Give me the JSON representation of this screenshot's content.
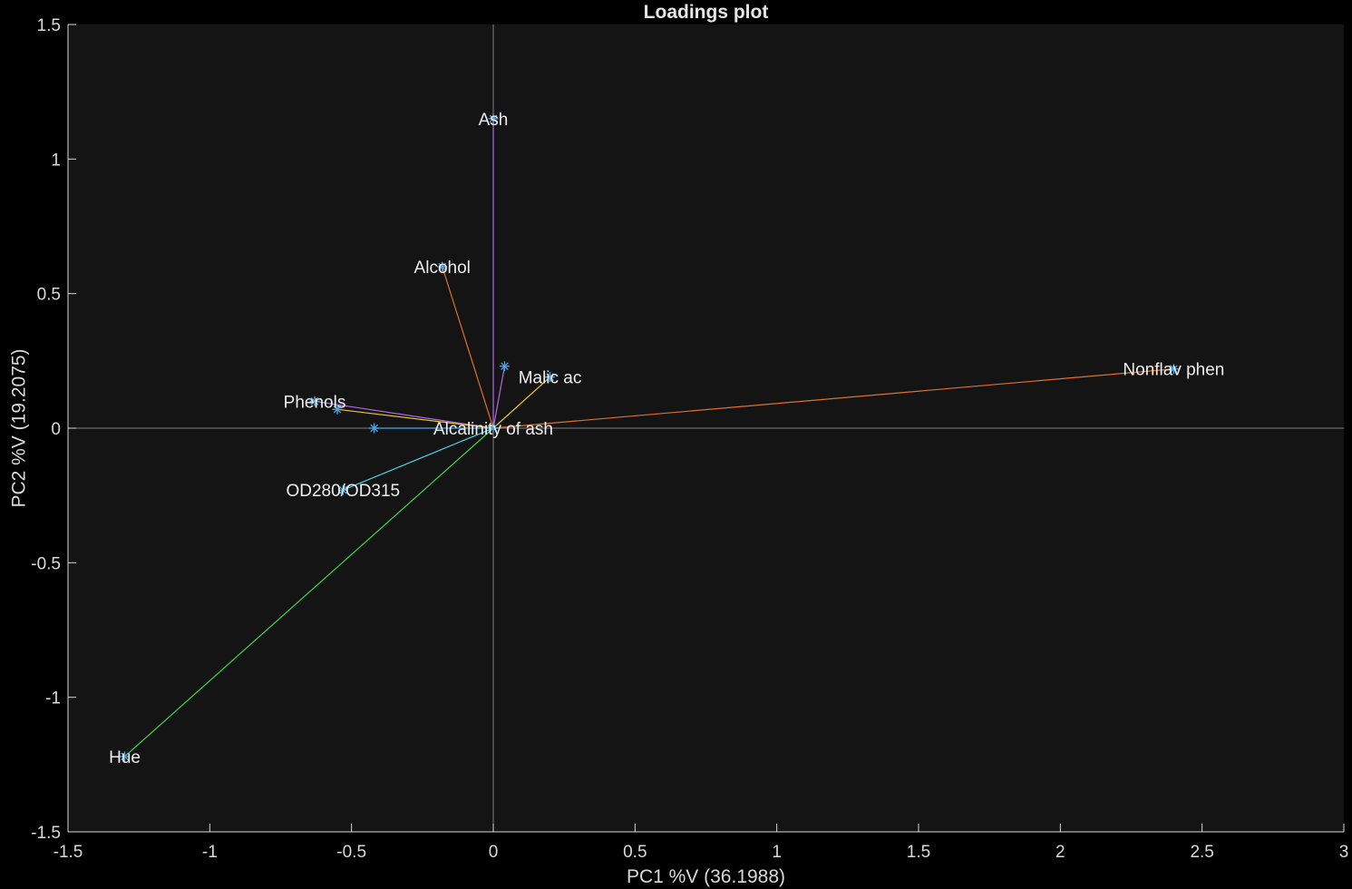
{
  "chart_data": {
    "type": "scatter",
    "title": "Loadings plot",
    "xlabel": "PC1 %V (36.1988)",
    "ylabel": "PC2 %V (19.2075)",
    "xlim": [
      -1.5,
      3
    ],
    "ylim": [
      -1.5,
      1.5
    ],
    "xticks": [
      -1.5,
      -1,
      -0.5,
      0,
      0.5,
      1,
      1.5,
      2,
      2.5,
      3
    ],
    "yticks": [
      -1.5,
      -1,
      -0.5,
      0,
      0.5,
      1,
      1.5
    ],
    "xtick_labels": [
      "-1.5",
      "-1",
      "-0.5",
      "0",
      "0.5",
      "1",
      "1.5",
      "2",
      "2.5",
      "3"
    ],
    "ytick_labels": [
      "-1.5",
      "-1",
      "-0.5",
      "0",
      "0.5",
      "1",
      "1.5"
    ],
    "grid": false,
    "reference_lines": [
      "x=0",
      "y=0"
    ],
    "background": "#141414",
    "axis_color": "#d9d9d9",
    "reference_line_color": "#7f7f7f",
    "marker": "asterisk",
    "marker_color": "#4fa3e6",
    "points": [
      {
        "label": "Ash",
        "x": 0.0,
        "y": 1.15,
        "color": "#b36be0"
      },
      {
        "label": "Alcohol",
        "x": -0.18,
        "y": 0.6,
        "color": "#e0702e"
      },
      {
        "label": "Malic ac",
        "x": 0.2,
        "y": 0.19,
        "color": "#e8c832"
      },
      {
        "label": "Nonflav phen",
        "x": 2.4,
        "y": 0.22,
        "color": "#e0702e"
      },
      {
        "label": "Phenols",
        "x": -0.63,
        "y": 0.1,
        "color": "#b36be0"
      },
      {
        "label": "Alcalinity of ash",
        "x": 0.0,
        "y": 0.0,
        "color": "#3fd64a"
      },
      {
        "label": "OD280/OD315",
        "x": -0.53,
        "y": -0.23,
        "color": "#4fd6e6"
      },
      {
        "label": "Hue",
        "x": -1.3,
        "y": -1.22,
        "color": "#3fd64a"
      },
      {
        "label": "",
        "x": 0.04,
        "y": 0.23,
        "color": "#b36be0"
      },
      {
        "label": "",
        "x": -0.55,
        "y": 0.07,
        "color": "#e8c832"
      },
      {
        "label": "",
        "x": -0.42,
        "y": 0.0,
        "color": "#4fa3e6"
      }
    ]
  }
}
